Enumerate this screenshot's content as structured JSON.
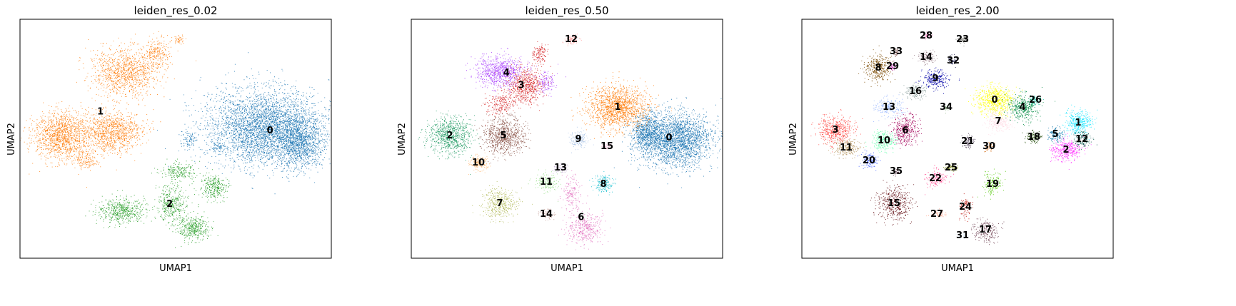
{
  "chart_data": [
    {
      "type": "scatter",
      "title": "leiden_res_0.02",
      "xlabel": "UMAP1",
      "ylabel": "UMAP2",
      "grid": false,
      "legend": "on data",
      "clusters": [
        {
          "label": "0",
          "color": "#1f77b4",
          "blobs": [
            [
              370,
              178,
              95,
              62,
              9000
            ],
            [
              420,
              200,
              40,
              40,
              2500
            ],
            [
              265,
              195,
              14,
              14,
              200
            ],
            [
              305,
              205,
              12,
              8,
              120
            ]
          ]
        },
        {
          "label": "1",
          "color": "#ff7f0e",
          "blobs": [
            [
              85,
              190,
              45,
              40,
              3000
            ],
            [
              155,
              185,
              50,
              35,
              2500
            ],
            [
              175,
              100,
              55,
              40,
              2500
            ],
            [
              220,
              75,
              20,
              25,
              500
            ],
            [
              250,
              55,
              10,
              8,
              100
            ],
            [
              120,
              225,
              20,
              15,
              300
            ]
          ]
        },
        {
          "label": "2",
          "color": "#2ca02c",
          "blobs": [
            [
              170,
              295,
              40,
              20,
              1200
            ],
            [
              240,
              285,
              25,
              30,
              900
            ],
            [
              300,
              262,
              22,
              20,
              700
            ],
            [
              270,
              320,
              25,
              20,
              900
            ],
            [
              250,
              240,
              30,
              15,
              500
            ]
          ]
        }
      ]
    },
    {
      "type": "scatter",
      "title": "leiden_res_0.50",
      "xlabel": "UMAP1",
      "ylabel": "UMAP2",
      "grid": false,
      "legend": "on data",
      "clusters": [
        {
          "label": "0",
          "color": "#1f77b4",
          "blobs": [
            [
              945,
              195,
              60,
              45,
              6000
            ],
            [
              905,
              185,
              25,
              30,
              1500
            ]
          ]
        },
        {
          "label": "1",
          "color": "#ff7f0e",
          "blobs": [
            [
              865,
              150,
              50,
              35,
              3500
            ]
          ]
        },
        {
          "label": "2",
          "color": "#279e68",
          "blobs": [
            [
              630,
              190,
              35,
              30,
              2000
            ]
          ]
        },
        {
          "label": "3",
          "color": "#d62728",
          "blobs": [
            [
              735,
              120,
              30,
              30,
              1500
            ],
            [
              700,
              145,
              25,
              20,
              500
            ],
            [
              755,
              75,
              12,
              18,
              300
            ]
          ]
        },
        {
          "label": "4",
          "color": "#aa40fc",
          "blobs": [
            [
              700,
              100,
              40,
              25,
              1800
            ],
            [
              765,
              115,
              15,
              20,
              300
            ]
          ]
        },
        {
          "label": "5",
          "color": "#8c564b",
          "blobs": [
            [
              705,
              190,
              35,
              30,
              2000
            ]
          ]
        },
        {
          "label": "6",
          "color": "#e377c2",
          "blobs": [
            [
              820,
              320,
              30,
              25,
              900
            ],
            [
              800,
              270,
              15,
              30,
              400
            ]
          ]
        },
        {
          "label": "7",
          "color": "#b5bd61",
          "blobs": [
            [
              700,
              285,
              30,
              25,
              1000
            ]
          ]
        },
        {
          "label": "8",
          "color": "#17becf",
          "blobs": [
            [
              845,
              258,
              15,
              15,
              400
            ]
          ]
        },
        {
          "label": "9",
          "color": "#aec7e8",
          "blobs": [
            [
              810,
              195,
              15,
              15,
              400
            ]
          ]
        },
        {
          "label": "10",
          "color": "#ffbb78",
          "blobs": [
            [
              670,
              228,
              14,
              12,
              400
            ]
          ]
        },
        {
          "label": "11",
          "color": "#98df8a",
          "blobs": [
            [
              765,
              255,
              20,
              15,
              400
            ]
          ]
        },
        {
          "label": "12",
          "color": "#ff9896",
          "blobs": [
            [
              800,
              55,
              12,
              8,
              200
            ]
          ]
        },
        {
          "label": "13",
          "color": "#c5b0d5",
          "blobs": [
            [
              785,
              235,
              12,
              8,
              150
            ]
          ]
        },
        {
          "label": "14",
          "color": "#c49c94",
          "blobs": [
            [
              765,
              300,
              12,
              8,
              150
            ]
          ]
        },
        {
          "label": "15",
          "color": "#f7b6d2",
          "blobs": [
            [
              850,
              205,
              8,
              6,
              100
            ]
          ]
        }
      ]
    },
    {
      "type": "scatter",
      "title": "leiden_res_2.00",
      "xlabel": "UMAP1",
      "ylabel": "UMAP2",
      "grid": false,
      "legend": "on data",
      "clusters": [
        {
          "label": "0",
          "color": "#ffff00",
          "blobs": [
            [
              1393,
              140,
              30,
              25,
              1500
            ]
          ]
        },
        {
          "label": "1",
          "color": "#1ce6ff",
          "blobs": [
            [
              1510,
              172,
              22,
              20,
              900
            ]
          ]
        },
        {
          "label": "2",
          "color": "#ff34ff",
          "blobs": [
            [
              1493,
              210,
              25,
              18,
              900
            ]
          ]
        },
        {
          "label": "3",
          "color": "#ff4a46",
          "blobs": [
            [
              1170,
              182,
              28,
              22,
              1200
            ]
          ]
        },
        {
          "label": "4",
          "color": "#008941",
          "blobs": [
            [
              1432,
              150,
              25,
              22,
              900
            ]
          ]
        },
        {
          "label": "5",
          "color": "#006fa6",
          "blobs": [
            [
              1478,
              188,
              12,
              12,
              300
            ]
          ]
        },
        {
          "label": "6",
          "color": "#a30059",
          "blobs": [
            [
              1268,
              183,
              22,
              25,
              900
            ]
          ]
        },
        {
          "label": "7",
          "color": "#ffdbe5",
          "blobs": [
            [
              1398,
              170,
              22,
              15,
              600
            ]
          ]
        },
        {
          "label": "8",
          "color": "#7a4900",
          "blobs": [
            [
              1230,
              95,
              22,
              22,
              800
            ]
          ]
        },
        {
          "label": "9",
          "color": "#0000a6",
          "blobs": [
            [
              1310,
              110,
              22,
              15,
              600
            ]
          ]
        },
        {
          "label": "10",
          "color": "#63ffac",
          "blobs": [
            [
              1238,
              197,
              20,
              16,
              600
            ]
          ]
        },
        {
          "label": "11",
          "color": "#b79762",
          "blobs": [
            [
              1185,
              207,
              22,
              14,
              600
            ]
          ]
        },
        {
          "label": "12",
          "color": "#004d43",
          "blobs": [
            [
              1515,
              195,
              15,
              15,
              300
            ]
          ]
        },
        {
          "label": "13",
          "color": "#8fb0ff",
          "blobs": [
            [
              1245,
              150,
              22,
              15,
              500
            ]
          ]
        },
        {
          "label": "14",
          "color": "#997d87",
          "blobs": [
            [
              1297,
              80,
              15,
              10,
              300
            ]
          ]
        },
        {
          "label": "15",
          "color": "#5a0007",
          "blobs": [
            [
              1252,
              285,
              28,
              28,
              1000
            ]
          ]
        },
        {
          "label": "16",
          "color": "#809693",
          "blobs": [
            [
              1282,
              128,
              18,
              12,
              400
            ]
          ]
        },
        {
          "label": "17",
          "color": "#6a3a4c",
          "blobs": [
            [
              1380,
              322,
              20,
              20,
              500
            ]
          ]
        },
        {
          "label": "18",
          "color": "#1b4400",
          "blobs": [
            [
              1448,
              192,
              12,
              10,
              300
            ]
          ]
        },
        {
          "label": "19",
          "color": "#4fc601",
          "blobs": [
            [
              1390,
              258,
              15,
              20,
              400
            ]
          ]
        },
        {
          "label": "20",
          "color": "#3b5dff",
          "blobs": [
            [
              1217,
              225,
              14,
              12,
              300
            ]
          ]
        },
        {
          "label": "21",
          "color": "#4a3b53",
          "blobs": [
            [
              1355,
              198,
              10,
              12,
              200
            ]
          ]
        },
        {
          "label": "22",
          "color": "#ff2f80",
          "blobs": [
            [
              1310,
              250,
              18,
              15,
              300
            ]
          ]
        },
        {
          "label": "23",
          "color": "#61615a",
          "blobs": [
            [
              1348,
              55,
              10,
              6,
              150
            ]
          ]
        },
        {
          "label": "24",
          "color": "#ba0900",
          "blobs": [
            [
              1352,
              290,
              10,
              20,
              200
            ]
          ]
        },
        {
          "label": "25",
          "color": "#6b7900",
          "blobs": [
            [
              1332,
              235,
              12,
              5,
              150
            ]
          ]
        },
        {
          "label": "26",
          "color": "#00c2a0",
          "blobs": [
            [
              1450,
              140,
              10,
              8,
              150
            ]
          ]
        },
        {
          "label": "27",
          "color": "#ffaa92",
          "blobs": [
            [
              1312,
              300,
              12,
              6,
              150
            ]
          ]
        },
        {
          "label": "28",
          "color": "#ff90c9",
          "blobs": [
            [
              1297,
              50,
              8,
              7,
              100
            ]
          ]
        },
        {
          "label": "29",
          "color": "#b903aa",
          "blobs": [
            [
              1250,
              93,
              6,
              6,
              80
            ]
          ]
        },
        {
          "label": "30",
          "color": "#d16100",
          "blobs": [
            [
              1385,
              205,
              8,
              8,
              100
            ]
          ]
        },
        {
          "label": "31",
          "color": "#ddefff",
          "blobs": [
            [
              1348,
              330,
              8,
              6,
              80
            ]
          ]
        },
        {
          "label": "32",
          "color": "#000035",
          "blobs": [
            [
              1335,
              85,
              8,
              8,
              100
            ]
          ]
        },
        {
          "label": "33",
          "color": "#7b4f4b",
          "blobs": [
            [
              1255,
              72,
              6,
              6,
              80
            ]
          ]
        },
        {
          "label": "34",
          "color": "#a1c299",
          "blobs": [
            [
              1325,
              150,
              6,
              6,
              60
            ]
          ]
        },
        {
          "label": "35",
          "color": "#300018",
          "blobs": [
            [
              1255,
              240,
              8,
              6,
              60
            ]
          ]
        }
      ]
    }
  ]
}
